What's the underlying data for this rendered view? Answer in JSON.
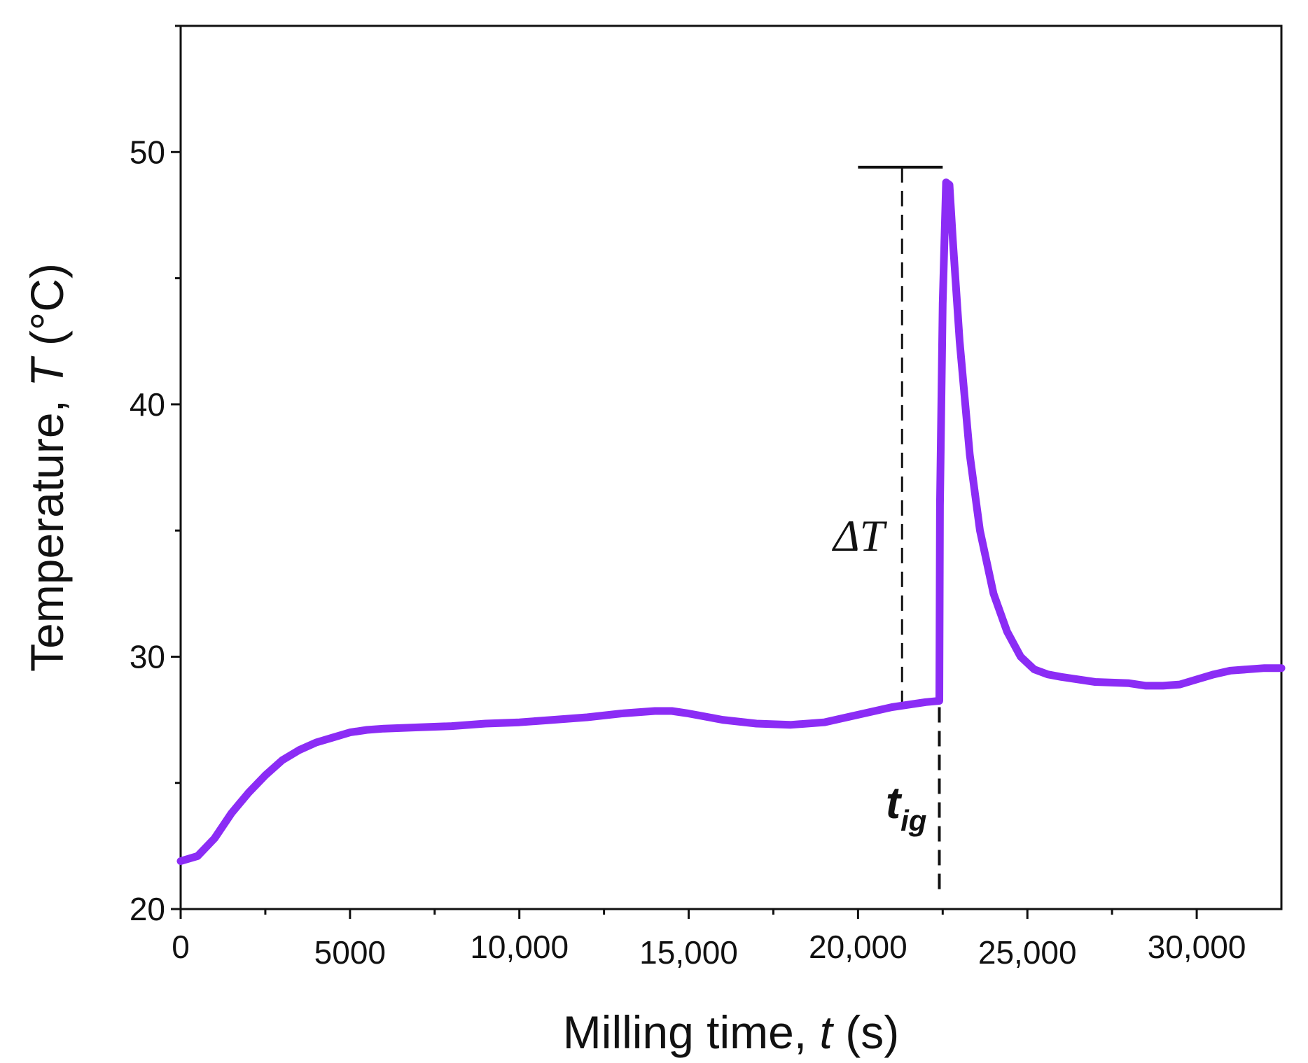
{
  "chart_data": {
    "type": "line",
    "title": "",
    "xlabel": "Milling time, ",
    "xlabel_italic": "t",
    "xlabel_suffix": " (s)",
    "ylabel": "Temperature, ",
    "ylabel_italic": "T",
    "ylabel_suffix": " (°C)",
    "xlim": [
      0,
      32500
    ],
    "ylim": [
      20,
      55
    ],
    "x_ticks": [
      {
        "value": 0,
        "label": "0"
      },
      {
        "value": 5000,
        "label": "5000"
      },
      {
        "value": 10000,
        "label": "10,000"
      },
      {
        "value": 15000,
        "label": "15,000"
      },
      {
        "value": 20000,
        "label": "20,000"
      },
      {
        "value": 25000,
        "label": "25,000"
      },
      {
        "value": 30000,
        "label": "30,000"
      }
    ],
    "y_ticks": [
      {
        "value": 20,
        "label": "20"
      },
      {
        "value": 30,
        "label": "30"
      },
      {
        "value": 40,
        "label": "40"
      },
      {
        "value": 50,
        "label": "50"
      }
    ],
    "series": [
      {
        "name": "Temperature",
        "color": "#8b2cf5",
        "x": [
          0,
          500,
          1000,
          1500,
          2000,
          2500,
          3000,
          3500,
          4000,
          4500,
          5000,
          5500,
          6000,
          7000,
          8000,
          9000,
          10000,
          11000,
          12000,
          13000,
          14000,
          14500,
          15000,
          16000,
          17000,
          18000,
          19000,
          20000,
          21000,
          22000,
          22400,
          22420,
          22500,
          22600,
          22700,
          22800,
          23000,
          23300,
          23600,
          24000,
          24400,
          24800,
          25200,
          25600,
          26000,
          27000,
          28000,
          28500,
          29000,
          29500,
          30000,
          30500,
          31000,
          32000,
          32500
        ],
        "y": [
          21.9,
          22.1,
          22.8,
          23.8,
          24.6,
          25.3,
          25.9,
          26.3,
          26.6,
          26.8,
          27.0,
          27.1,
          27.15,
          27.2,
          27.25,
          27.35,
          27.4,
          27.5,
          27.6,
          27.75,
          27.85,
          27.85,
          27.75,
          27.5,
          27.35,
          27.3,
          27.4,
          27.7,
          28.0,
          28.2,
          28.25,
          36.0,
          44.0,
          48.8,
          48.7,
          46.5,
          42.5,
          38.0,
          35.0,
          32.5,
          31.0,
          30.0,
          29.5,
          29.3,
          29.2,
          29.0,
          28.95,
          28.85,
          28.85,
          28.9,
          29.1,
          29.3,
          29.45,
          29.55,
          29.55
        ]
      }
    ],
    "annotations": {
      "delta_t_label": "ΔT",
      "t_ig_main": "t",
      "t_ig_sub": "ig",
      "peak_temperature": 49.4,
      "hline_x_range": [
        20000,
        22500
      ],
      "delta_t_dashed_x": 21300,
      "delta_t_dashed_y_range": [
        28.0,
        49.4
      ],
      "t_ig_x": 22400,
      "t_ig_dashed_y_range": [
        20.5,
        28.0
      ]
    },
    "grid": false,
    "legend": "none"
  }
}
